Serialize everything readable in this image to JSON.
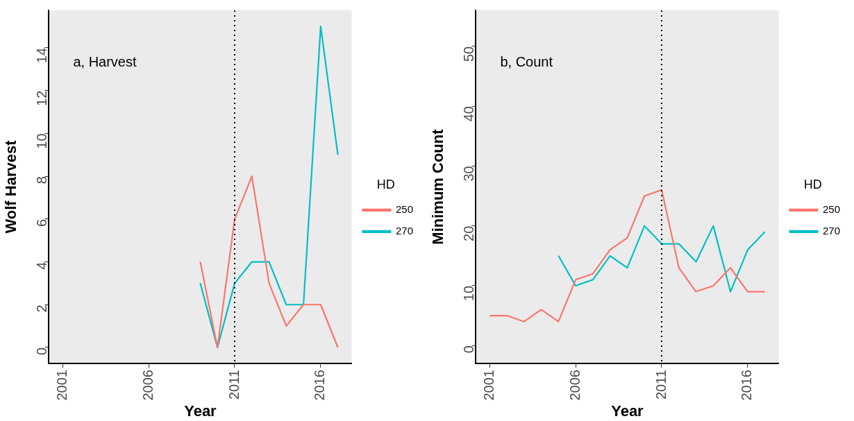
{
  "chart_data": [
    {
      "type": "line",
      "xlabel": "Year",
      "ylabel": "Wolf Harvest",
      "legend_title": "HD",
      "legend": "right",
      "grid": false,
      "marker": "none",
      "annotations": [
        "a, Harvest"
      ],
      "xlim": [
        2000.2,
        2017.8
      ],
      "xticks": [
        2001,
        2006,
        2011,
        2016
      ],
      "ylim": [
        -0.75,
        15.75
      ],
      "yticks": [
        0,
        2,
        4,
        6,
        8,
        10,
        12,
        14
      ],
      "ref_lines": [
        {
          "axis": "x",
          "value": 2011,
          "line_style": "dotted",
          "color": "#000000"
        }
      ],
      "series": [
        {
          "name": "250",
          "color": "#f8766d",
          "x": [
            2009,
            2010,
            2011,
            2012,
            2013,
            2014,
            2015,
            2016,
            2017
          ],
          "values": [
            4,
            0,
            6,
            8,
            3,
            1,
            2,
            2,
            0
          ]
        },
        {
          "name": "270",
          "color": "#00bfc4",
          "x": [
            2009,
            2010,
            2011,
            2012,
            2013,
            2014,
            2015,
            2016,
            2017
          ],
          "values": [
            3,
            0,
            3,
            4,
            4,
            2,
            2,
            15,
            9
          ]
        }
      ]
    },
    {
      "type": "line",
      "xlabel": "Year",
      "ylabel": "Minimum Count",
      "legend_title": "HD",
      "legend": "right",
      "grid": false,
      "marker": "none",
      "annotations": [
        "b, Count"
      ],
      "xlim": [
        2000.2,
        2017.8
      ],
      "xticks": [
        2001,
        2006,
        2011,
        2016
      ],
      "ylim": [
        -3,
        56
      ],
      "yticks": [
        0,
        10,
        20,
        30,
        40,
        50
      ],
      "ref_lines": [
        {
          "axis": "x",
          "value": 2011,
          "line_style": "dotted",
          "color": "#000000"
        }
      ],
      "series": [
        {
          "name": "250",
          "color": "#f8766d",
          "x": [
            2001,
            2002,
            2003,
            2004,
            2005,
            2006,
            2007,
            2008,
            2009,
            2010,
            2011,
            2012,
            2013,
            2014,
            2015,
            2016,
            2017
          ],
          "values": [
            5,
            5,
            4,
            6,
            4,
            11,
            12,
            16,
            18,
            25,
            26,
            13,
            9,
            10,
            13,
            9,
            9
          ]
        },
        {
          "name": "270",
          "color": "#00bfc4",
          "x": [
            2005,
            2006,
            2007,
            2008,
            2009,
            2010,
            2011,
            2012,
            2013,
            2014,
            2015,
            2016,
            2017
          ],
          "values": [
            15,
            10,
            11,
            15,
            13,
            20,
            17,
            17,
            14,
            20,
            9,
            16,
            19
          ]
        }
      ]
    }
  ]
}
